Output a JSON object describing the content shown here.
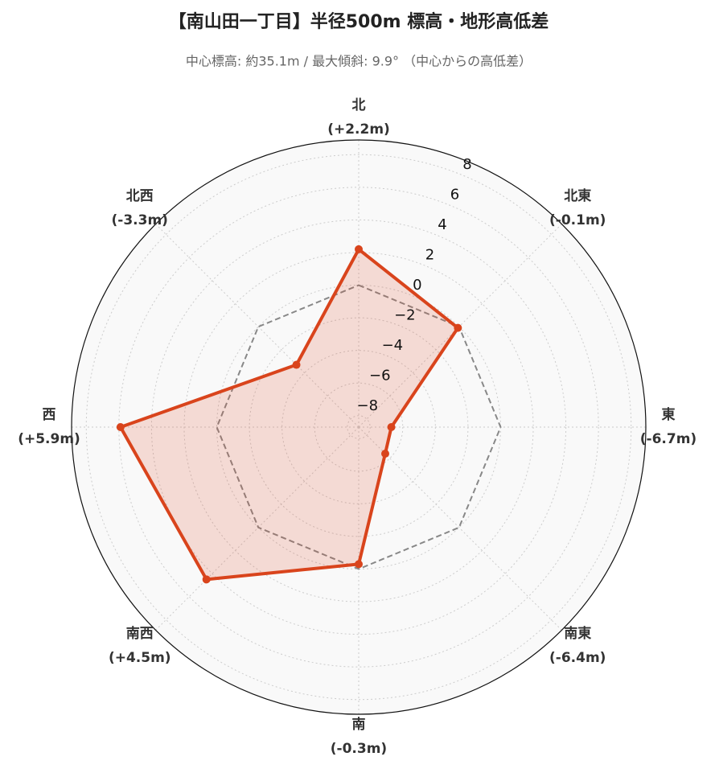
{
  "chart_data": {
    "type": "radar",
    "title": "【南山田一丁目】半径500m 標高・地形高低差",
    "subtitle": "中心標高: 約35.1m / 最大傾斜: 9.9° （中心からの高低差）",
    "categories": [
      "北",
      "北東",
      "東",
      "南東",
      "南",
      "南西",
      "西",
      "北西"
    ],
    "series": [
      {
        "name": "高低差",
        "color": "#d9441c",
        "values": [
          2.2,
          -0.1,
          -6.7,
          -6.4,
          -0.3,
          4.5,
          5.9,
          -3.3
        ],
        "value_labels": [
          "(+2.2m)",
          "(-0.1m)",
          "(-6.7m)",
          "(-6.4m)",
          "(-0.3m)",
          "(+4.5m)",
          "(+5.9m)",
          "(-3.3m)"
        ]
      }
    ],
    "ylim": [
      -8.7,
      8.9
    ],
    "yticks": [
      {
        "value": -8,
        "label": "−8"
      },
      {
        "value": -6,
        "label": "−6"
      },
      {
        "value": -4,
        "label": "−4"
      },
      {
        "value": -2,
        "label": "−2"
      },
      0,
      2,
      4,
      6,
      8
    ],
    "reference_line": 0,
    "grid": true
  }
}
